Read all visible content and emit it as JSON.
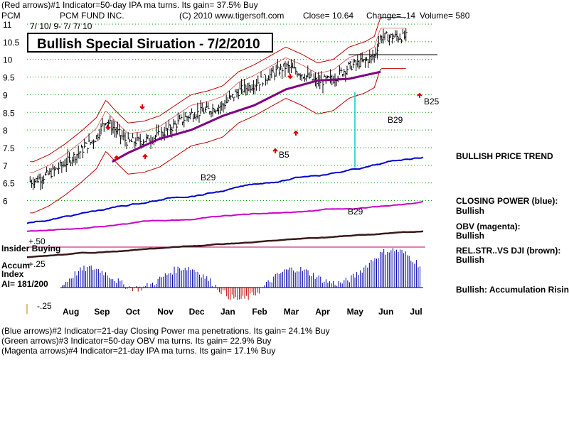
{
  "header": {
    "indicator1": "(Red arrows)#1 Indicator=50-day IPA ma turns. Its gain= 37.5% Buy",
    "ticker": "PCM",
    "fund": "PCM FUND INC.",
    "copyright": "(C) 2010 www.tigersoft.com",
    "close": "Close=  10.64",
    "change": "Change= .14",
    "volume": "Volume= 580",
    "date_range": "7/ 10/ 9- 7/ 7/ 10"
  },
  "title": "Bullish Special Siruation - 7/2/2010",
  "right_panel": {
    "trend": "BULLISH PRICE TREND",
    "cp_label": "CLOSING POWER (blue):",
    "cp_value": "Bullish",
    "obv_label": "OBV (magenta):",
    "obv_value": "Bullish",
    "rel_label": "REL.STR..VS DJI (brown):",
    "rel_value": "Bullish",
    "accum_note": "Bullish: Accumulation Rising"
  },
  "left_labels": {
    "insider": "Insider Buying",
    "plus50": "+.50",
    "plus25": "+.25",
    "accum1": "Accum",
    "accum2": "Index",
    "ai": "AI= 181/200",
    "minus25": "-.25"
  },
  "footer": {
    "line1": "(Blue arrows)#2 Indicator=21-day Closing Power ma penetrations. Its gain= 24.1% Buy",
    "line2": "(Green arrows)#3 Indicator=50-day OBV ma turns. Its gain= 22.9% Buy",
    "line3": "(Magenta arrows)#4 Indicator=21-day IPA ma turns. Its gain= 17.1% Buy"
  },
  "chart_data": {
    "type": "line",
    "title": "Bullish Special Siruation - 7/2/2010",
    "x_tick_labels": [
      "Aug",
      "Sep",
      "Oct",
      "Nov",
      "Dec",
      "Jan",
      "Feb",
      "Mar",
      "Apr",
      "May",
      "Jun",
      "Jul"
    ],
    "y_tick_labels": [
      "11",
      "10.5",
      "10",
      "9.5",
      "9",
      "8.5",
      "8",
      "7.5",
      "7",
      "6.5",
      "6"
    ],
    "ylim": [
      6,
      11
    ],
    "price_x_months": [
      0,
      0.5,
      1,
      1.5,
      2,
      2.3,
      2.6,
      3,
      3.5,
      4,
      4.5,
      5,
      5.5,
      6,
      6.5,
      7,
      7.5,
      8,
      8.5,
      9,
      9.5,
      10,
      10.5,
      10.8,
      11
    ],
    "price_close": [
      6.55,
      6.75,
      7.05,
      7.4,
      7.8,
      8.3,
      8.0,
      7.65,
      7.7,
      7.85,
      8.15,
      8.45,
      8.55,
      8.7,
      9.1,
      9.3,
      9.55,
      9.8,
      9.6,
      9.35,
      9.45,
      9.8,
      9.95,
      10.1,
      10.64
    ],
    "ma50_x_months": [
      2.5,
      3,
      4,
      5,
      6,
      7,
      8,
      9,
      10,
      11
    ],
    "ma50": [
      7.1,
      7.35,
      7.75,
      8.0,
      8.4,
      8.7,
      9.15,
      9.4,
      9.45,
      9.65
    ],
    "annotations": [
      "B29",
      "B5",
      "B29",
      "B29",
      "B25"
    ],
    "closing_power": "Bullish",
    "obv": "Bullish",
    "relative_strength_vs_dji": "Bullish",
    "accumulation_index": 181
  },
  "colors": {
    "price_bars": "#000000",
    "ma50": "#800080",
    "bands": "#c00000",
    "closing_power": "#0000cc",
    "obv": "#cc00cc",
    "rel_strength": "#3a1a1a",
    "accum_bars": "#0000aa",
    "accum_neg": "#c00000",
    "grid": "#009900"
  }
}
